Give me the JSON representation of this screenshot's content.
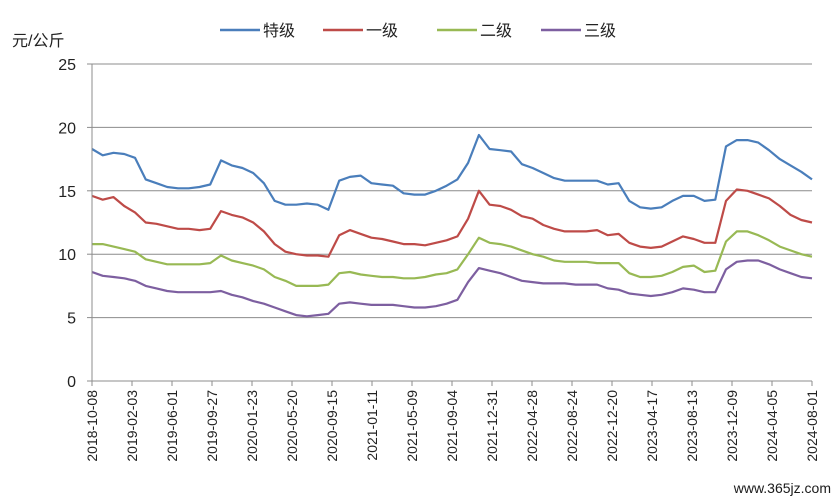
{
  "chart_data": {
    "type": "line",
    "ylabel": "元/公斤",
    "ylim": [
      0,
      25
    ],
    "yticks": [
      0,
      5,
      10,
      15,
      20,
      25
    ],
    "grid": true,
    "legend_position": "top",
    "x_tick_labels": [
      "2018-10-08",
      "2019-02-03",
      "2019-06-01",
      "2019-09-27",
      "2020-01-23",
      "2020-05-20",
      "2020-09-15",
      "2021-01-11",
      "2021-05-09",
      "2021-09-04",
      "2021-12-31",
      "2022-04-28",
      "2022-08-24",
      "2022-12-20",
      "2023-04-17",
      "2023-08-13",
      "2023-12-09",
      "2024-04-05",
      "2024-08-01"
    ],
    "series": [
      {
        "name": "特级",
        "color": "#4a7ebb",
        "values": [
          18.3,
          17.8,
          18.0,
          17.9,
          17.6,
          15.9,
          15.6,
          15.3,
          15.2,
          15.2,
          15.3,
          15.5,
          17.4,
          17.0,
          16.8,
          16.4,
          15.6,
          14.2,
          13.9,
          13.9,
          14.0,
          13.9,
          13.5,
          15.8,
          16.1,
          16.2,
          15.6,
          15.5,
          15.4,
          14.8,
          14.7,
          14.7,
          15.0,
          15.4,
          15.9,
          17.2,
          19.4,
          18.3,
          18.2,
          18.1,
          17.1,
          16.8,
          16.4,
          16.0,
          15.8,
          15.8,
          15.8,
          15.8,
          15.5,
          15.6,
          14.2,
          13.7,
          13.6,
          13.7,
          14.2,
          14.6,
          14.6,
          14.2,
          14.3,
          18.5,
          19.0,
          19.0,
          18.8,
          18.2,
          17.5,
          17.0,
          16.5,
          15.9
        ]
      },
      {
        "name": "一级",
        "color": "#be4b48",
        "values": [
          14.6,
          14.3,
          14.5,
          13.8,
          13.3,
          12.5,
          12.4,
          12.2,
          12.0,
          12.0,
          11.9,
          12.0,
          13.4,
          13.1,
          12.9,
          12.5,
          11.8,
          10.8,
          10.2,
          10.0,
          9.9,
          9.9,
          9.8,
          11.5,
          11.9,
          11.6,
          11.3,
          11.2,
          11.0,
          10.8,
          10.8,
          10.7,
          10.9,
          11.1,
          11.4,
          12.8,
          15.0,
          13.9,
          13.8,
          13.5,
          13.0,
          12.8,
          12.3,
          12.0,
          11.8,
          11.8,
          11.8,
          11.9,
          11.5,
          11.6,
          10.9,
          10.6,
          10.5,
          10.6,
          11.0,
          11.4,
          11.2,
          10.9,
          10.9,
          14.2,
          15.1,
          15.0,
          14.7,
          14.4,
          13.8,
          13.1,
          12.7,
          12.5
        ]
      },
      {
        "name": "二级",
        "color": "#98b954",
        "values": [
          10.8,
          10.8,
          10.6,
          10.4,
          10.2,
          9.6,
          9.4,
          9.2,
          9.2,
          9.2,
          9.2,
          9.3,
          9.9,
          9.5,
          9.3,
          9.1,
          8.8,
          8.2,
          7.9,
          7.5,
          7.5,
          7.5,
          7.6,
          8.5,
          8.6,
          8.4,
          8.3,
          8.2,
          8.2,
          8.1,
          8.1,
          8.2,
          8.4,
          8.5,
          8.8,
          10.0,
          11.3,
          10.9,
          10.8,
          10.6,
          10.3,
          10.0,
          9.8,
          9.5,
          9.4,
          9.4,
          9.4,
          9.3,
          9.3,
          9.3,
          8.5,
          8.2,
          8.2,
          8.3,
          8.6,
          9.0,
          9.1,
          8.6,
          8.7,
          11.0,
          11.8,
          11.8,
          11.5,
          11.1,
          10.6,
          10.3,
          10.0,
          9.8
        ]
      },
      {
        "name": "三级",
        "color": "#7d5fa0",
        "values": [
          8.6,
          8.3,
          8.2,
          8.1,
          7.9,
          7.5,
          7.3,
          7.1,
          7.0,
          7.0,
          7.0,
          7.0,
          7.1,
          6.8,
          6.6,
          6.3,
          6.1,
          5.8,
          5.5,
          5.2,
          5.1,
          5.2,
          5.3,
          6.1,
          6.2,
          6.1,
          6.0,
          6.0,
          6.0,
          5.9,
          5.8,
          5.8,
          5.9,
          6.1,
          6.4,
          7.8,
          8.9,
          8.7,
          8.5,
          8.2,
          7.9,
          7.8,
          7.7,
          7.7,
          7.7,
          7.6,
          7.6,
          7.6,
          7.3,
          7.2,
          6.9,
          6.8,
          6.7,
          6.8,
          7.0,
          7.3,
          7.2,
          7.0,
          7.0,
          8.8,
          9.4,
          9.5,
          9.5,
          9.2,
          8.8,
          8.5,
          8.2,
          8.1
        ]
      }
    ]
  },
  "watermark": "www.365jz.com"
}
